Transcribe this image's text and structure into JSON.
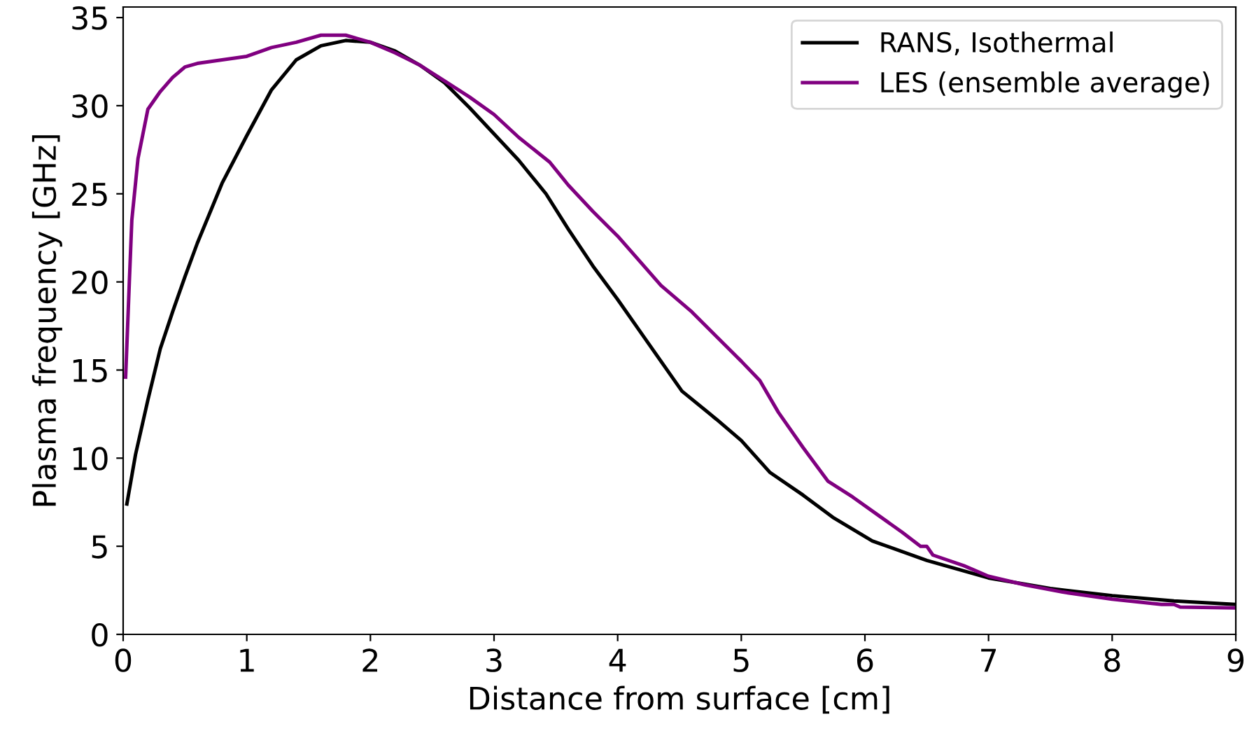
{
  "chart_data": {
    "type": "line",
    "xlabel": "Distance from surface [cm]",
    "ylabel": "Plasma frequency [GHz]",
    "xlim": [
      0,
      9
    ],
    "ylim": [
      0,
      35.6
    ],
    "xticks": [
      0,
      1,
      2,
      3,
      4,
      5,
      6,
      7,
      8,
      9
    ],
    "yticks": [
      0,
      5,
      10,
      15,
      20,
      25,
      30,
      35
    ],
    "grid": false,
    "legend": "top right",
    "marker": "none",
    "line_style": "solid",
    "series": [
      {
        "name": "RANS, Isothermal",
        "color": "#000000",
        "x": [
          0.03,
          0.1,
          0.2,
          0.3,
          0.4,
          0.5,
          0.6,
          0.8,
          1.0,
          1.2,
          1.4,
          1.6,
          1.8,
          2.0,
          2.2,
          2.4,
          2.6,
          2.8,
          3.0,
          3.2,
          3.42,
          3.6,
          3.8,
          4.0,
          4.2,
          4.52,
          4.8,
          5.0,
          5.23,
          5.5,
          5.75,
          6.06,
          6.5,
          7.0,
          7.5,
          8.0,
          8.5,
          9.0
        ],
        "values": [
          7.4,
          10.2,
          13.3,
          16.2,
          18.3,
          20.3,
          22.2,
          25.6,
          28.3,
          30.9,
          32.6,
          33.4,
          33.7,
          33.6,
          33.1,
          32.3,
          31.3,
          29.9,
          28.4,
          26.9,
          25.0,
          23.0,
          20.9,
          19.0,
          17.0,
          13.8,
          12.2,
          11.0,
          9.2,
          7.9,
          6.6,
          5.3,
          4.2,
          3.2,
          2.6,
          2.2,
          1.9,
          1.7
        ]
      },
      {
        "name": "LES (ensemble average)",
        "color": "#800080",
        "x": [
          0.02,
          0.05,
          0.07,
          0.12,
          0.2,
          0.3,
          0.4,
          0.5,
          0.6,
          0.8,
          1.0,
          1.2,
          1.4,
          1.6,
          1.8,
          2.0,
          2.2,
          2.4,
          2.6,
          2.8,
          3.0,
          3.2,
          3.45,
          3.6,
          3.8,
          4.0,
          4.2,
          4.35,
          4.6,
          4.8,
          5.0,
          5.15,
          5.3,
          5.5,
          5.7,
          5.9,
          6.1,
          6.3,
          6.45,
          6.5,
          6.55,
          6.8,
          7.0,
          7.3,
          7.6,
          8.0,
          8.4,
          8.5,
          8.55,
          9.0
        ],
        "values": [
          14.6,
          20.0,
          23.5,
          27.0,
          29.8,
          30.8,
          31.6,
          32.2,
          32.4,
          32.6,
          32.8,
          33.3,
          33.6,
          34.0,
          34.0,
          33.6,
          33.0,
          32.3,
          31.4,
          30.5,
          29.5,
          28.2,
          26.8,
          25.5,
          24.0,
          22.6,
          21.0,
          19.8,
          18.3,
          16.9,
          15.5,
          14.4,
          12.6,
          10.6,
          8.7,
          7.8,
          6.8,
          5.8,
          5.0,
          5.0,
          4.5,
          3.9,
          3.3,
          2.8,
          2.4,
          2.0,
          1.7,
          1.7,
          1.55,
          1.5
        ]
      }
    ]
  }
}
